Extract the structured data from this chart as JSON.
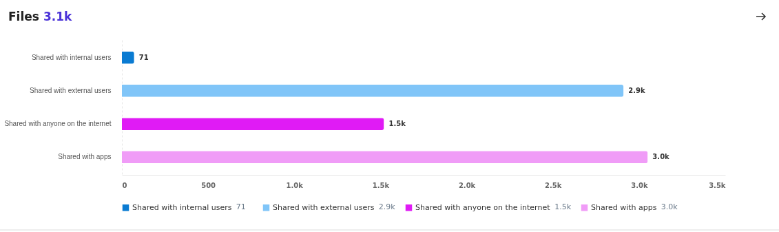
{
  "chart_data": {
    "type": "bar",
    "orientation": "horizontal",
    "title": "Files",
    "subtitle": "3.1k",
    "categories": [
      "Shared with internal users",
      "Shared with external users",
      "Shared with anyone on the internet",
      "Shared with apps"
    ],
    "series": [
      {
        "name": "Shared with internal users",
        "color": "#0a7bd2",
        "values": [
          71,
          null,
          null,
          null
        ],
        "value_labels": [
          "71",
          null,
          null,
          null
        ]
      },
      {
        "name": "Shared with external users",
        "color": "#80c5f8",
        "values": [
          null,
          2910,
          null,
          null
        ],
        "value_labels": [
          null,
          "2.9k",
          null,
          null
        ]
      },
      {
        "name": "Shared with anyone on the internet",
        "color": "#e01bf5",
        "values": [
          null,
          null,
          1520,
          null
        ],
        "value_labels": [
          null,
          null,
          "1.5k",
          null
        ]
      },
      {
        "name": "Shared with apps",
        "color": "#f09cf7",
        "values": [
          null,
          null,
          null,
          3050
        ],
        "value_labels": [
          null,
          null,
          null,
          "3.0k"
        ]
      }
    ],
    "xlim": [
      0,
      3500
    ],
    "xticks": [
      0,
      500,
      {
        "value": 1000,
        "label": "1.0k"
      },
      {
        "value": 1500,
        "label": "1.5k"
      },
      {
        "value": 2000,
        "label": "2.0k"
      },
      {
        "value": 2500,
        "label": "2.5k"
      },
      {
        "value": 3000,
        "label": "3.0k"
      },
      {
        "value": 3500,
        "label": "3.5k"
      }
    ],
    "grid": false,
    "legend": "bottom"
  }
}
